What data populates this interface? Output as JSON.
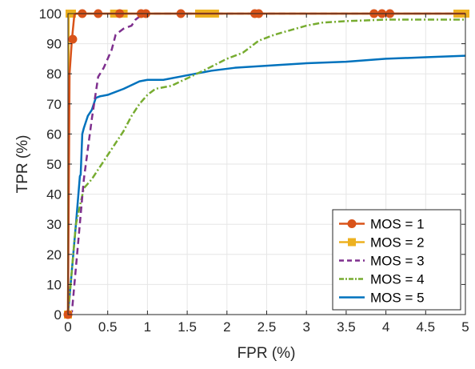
{
  "chart_data": {
    "type": "line",
    "title": "",
    "xlabel": "FPR (%)",
    "ylabel": "TPR (%)",
    "xlim": [
      0,
      5
    ],
    "ylim": [
      0,
      100
    ],
    "xticks": [
      0,
      0.5,
      1,
      1.5,
      2,
      2.5,
      3,
      3.5,
      4,
      4.5,
      5
    ],
    "yticks": [
      0,
      10,
      20,
      30,
      40,
      50,
      60,
      70,
      80,
      90,
      100
    ],
    "xtick_labels": [
      "0",
      "0.5",
      "1",
      "1.5",
      "2",
      "2.5",
      "3",
      "3.5",
      "4",
      "4.5",
      "5"
    ],
    "ytick_labels": [
      "0",
      "10",
      "20",
      "30",
      "40",
      "50",
      "60",
      "70",
      "80",
      "90",
      "100"
    ],
    "grid": true,
    "legend_position": "bottom-right",
    "series": [
      {
        "name": "MOS = 1",
        "color": "#D95319",
        "line_style": "solid",
        "marker": "circle",
        "x": [
          0,
          0.02,
          0.05,
          0.08,
          0.1,
          0.18,
          0.38,
          0.65,
          0.9,
          0.97,
          1.0,
          1.42,
          2.35,
          2.4,
          2.42,
          3.85,
          3.95,
          4.05,
          5.0
        ],
        "y": [
          0,
          80,
          91.5,
          99.5,
          100,
          100,
          100,
          100,
          100,
          100,
          100,
          100,
          100,
          100,
          100,
          100,
          100,
          100,
          100
        ],
        "marker_x": [
          0,
          0.06,
          0.18,
          0.38,
          0.65,
          0.92,
          0.98,
          1.42,
          2.35,
          2.4,
          3.85,
          3.95,
          4.05
        ],
        "marker_y": [
          0,
          91.5,
          100,
          100,
          100,
          100,
          100,
          100,
          100,
          100,
          100,
          100,
          100
        ]
      },
      {
        "name": "MOS = 2",
        "color": "#EDB120",
        "line_style": "solid",
        "marker": "square",
        "x": [
          0,
          0.01,
          0.05,
          0.6,
          0.7,
          1.65,
          1.85,
          5.0
        ],
        "y": [
          0,
          99.5,
          100,
          100,
          100,
          100,
          100,
          100
        ],
        "marker_x": [
          0,
          0.02,
          0.05,
          0.58,
          0.62,
          0.66,
          0.7,
          1.65,
          1.7,
          1.75,
          1.8,
          1.85,
          4.9,
          5.0
        ],
        "marker_y": [
          0,
          100,
          100,
          100,
          100,
          100,
          100,
          100,
          100,
          100,
          100,
          100,
          100,
          100
        ]
      },
      {
        "name": "MOS = 3",
        "color": "#7E2F8E",
        "line_style": "dashed",
        "marker": "none",
        "x": [
          0,
          0.05,
          0.2,
          0.3,
          0.38,
          0.45,
          0.55,
          0.6,
          0.7,
          0.8,
          0.85,
          0.9,
          1.0,
          1.5,
          2.0,
          3.0,
          4.0,
          5.0
        ],
        "y": [
          0,
          1,
          45,
          65,
          79,
          82,
          88,
          93,
          95,
          96,
          98,
          99,
          100,
          100,
          100,
          100,
          100,
          100
        ]
      },
      {
        "name": "MOS = 4",
        "color": "#77AC30",
        "line_style": "dash-dot",
        "marker": "none",
        "x": [
          0,
          0.1,
          0.2,
          0.3,
          0.4,
          0.5,
          0.6,
          0.7,
          0.8,
          0.9,
          1.0,
          1.1,
          1.3,
          1.5,
          1.7,
          2.0,
          2.2,
          2.4,
          2.6,
          2.8,
          3.0,
          3.2,
          3.5,
          4.0,
          4.5,
          5.0
        ],
        "y": [
          0,
          30,
          42,
          45,
          49,
          53,
          57,
          61,
          66,
          70,
          73,
          75,
          76,
          78.5,
          81,
          85,
          87,
          91,
          93,
          94.5,
          96,
          97,
          97.5,
          98,
          98,
          98
        ]
      },
      {
        "name": "MOS = 5",
        "color": "#0072BD",
        "line_style": "solid",
        "marker": "none",
        "x": [
          0,
          0.05,
          0.1,
          0.15,
          0.16,
          0.18,
          0.2,
          0.25,
          0.3,
          0.35,
          0.4,
          0.5,
          0.7,
          0.9,
          1.0,
          1.2,
          1.5,
          1.8,
          2.1,
          2.4,
          2.7,
          3.0,
          3.5,
          4.0,
          4.5,
          5.0
        ],
        "y": [
          0,
          15,
          30,
          46,
          46.5,
          60,
          62,
          66,
          68,
          72,
          72.5,
          73,
          75,
          77.5,
          78,
          78,
          79.5,
          81,
          82,
          82.5,
          83,
          83.5,
          84,
          85,
          85.5,
          86
        ]
      }
    ]
  }
}
